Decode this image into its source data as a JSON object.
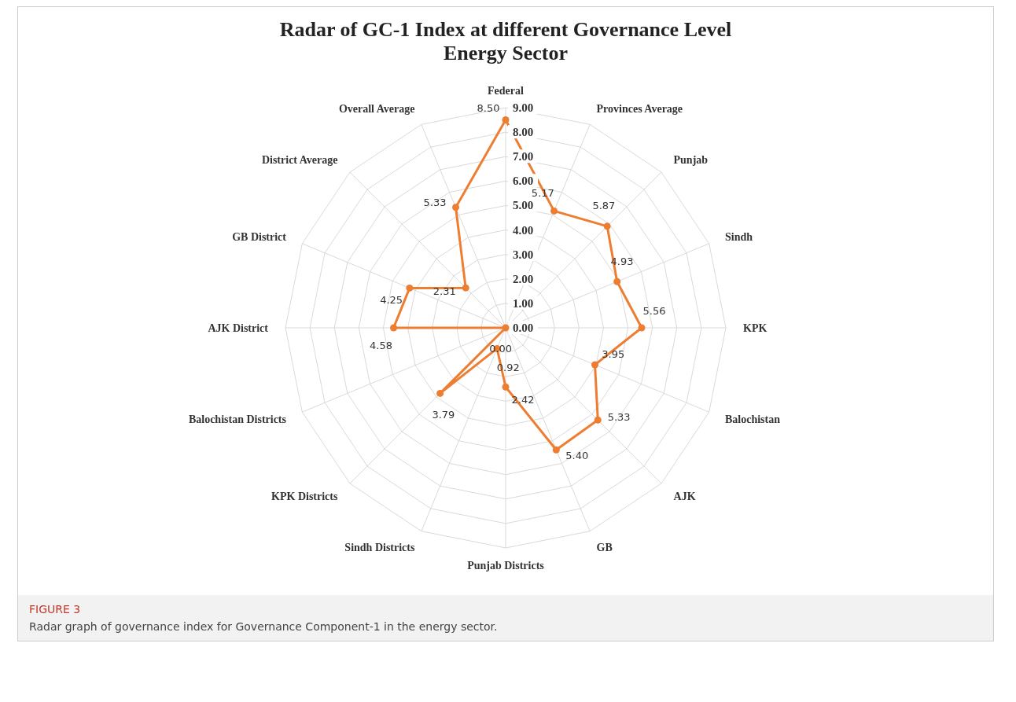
{
  "chart_data": {
    "type": "radar",
    "title": "Radar of GC-1 Index at different Governance Level",
    "subtitle": "Energy Sector",
    "categories": [
      "Federal",
      "Provinces Average",
      "Punjab",
      "Sindh",
      "KPK",
      "Balochistan",
      "AJK",
      "GB",
      "Punjab Districts",
      "Sindh Districts",
      "KPK Districts",
      "Balochistan Districts",
      "AJK District",
      "GB District",
      "District Average",
      "Overall Average"
    ],
    "series": [
      {
        "color": "#ed7d31",
        "values": [
          8.5,
          5.17,
          5.87,
          4.93,
          5.56,
          3.95,
          5.33,
          5.4,
          2.42,
          0.92,
          3.79,
          0.0,
          4.58,
          4.25,
          2.31,
          5.33
        ],
        "value_labels": [
          "8.50",
          "5.17",
          "5.87",
          "4.93",
          "5.56",
          "3.95",
          "5.33",
          "5.40",
          "2.42",
          "0.92",
          "3.79",
          "0.00",
          "4.58",
          "4.25",
          "2.31",
          "5.33"
        ]
      }
    ],
    "ylim": [
      0,
      9
    ],
    "yticks": [
      {
        "value": 0,
        "label": "0.00"
      },
      {
        "value": 1,
        "label": "1.00"
      },
      {
        "value": 2,
        "label": "2.00"
      },
      {
        "value": 3,
        "label": "3.00"
      },
      {
        "value": 4,
        "label": "4.00"
      },
      {
        "value": 5,
        "label": "5.00"
      },
      {
        "value": 6,
        "label": "6.00"
      },
      {
        "value": 7,
        "label": "7.00"
      },
      {
        "value": 8,
        "label": "8.00"
      },
      {
        "value": 9,
        "label": "9.00"
      }
    ],
    "grid": true,
    "marker": "circle",
    "legend": false,
    "annotations": [
      "FIGURE 3",
      "Radar graph of governance index for Governance Component-1 in the energy sector."
    ]
  }
}
